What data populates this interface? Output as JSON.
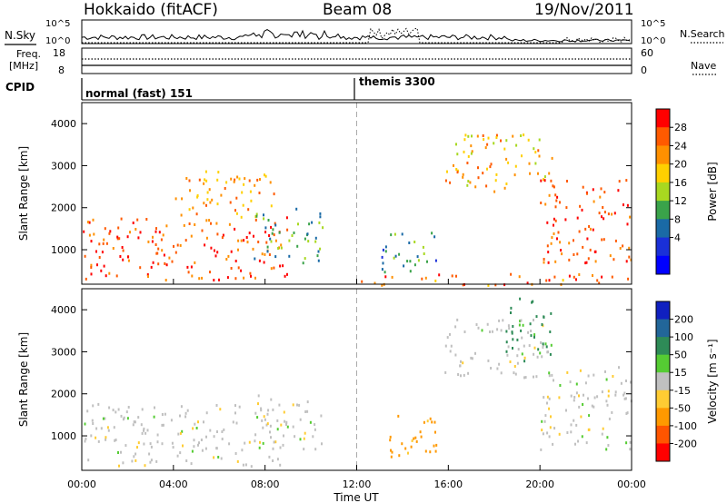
{
  "header": {
    "station": "Hokkaido (fitACF)",
    "beam": "Beam 08",
    "date": "19/Nov/2011"
  },
  "top_panels": {
    "nsky_label": "N.Sky",
    "nsky_ticks": [
      "10^5",
      "10^0"
    ],
    "nsky_right_ticks": [
      "10^5",
      "10^0"
    ],
    "nsearch_label": "N.Search",
    "freq_label": "Freq.",
    "freq_unit": "[MHz]",
    "freq_ticks": [
      "18",
      "8"
    ],
    "nave_ticks": [
      "60",
      "0"
    ],
    "nave_label": "Nave",
    "cpid_label": "CPID",
    "cpid_modes": [
      {
        "name": "normal (fast) 151",
        "start_hour": 0
      },
      {
        "name": "themis 3300",
        "start_hour": 12
      }
    ]
  },
  "chart_data": [
    {
      "type": "heatmap",
      "name": "power",
      "ylabel": "Slant Range [km]",
      "xlabel": "",
      "ylim": [
        180,
        4500
      ],
      "y_ticks": [
        1000,
        2000,
        3000,
        4000
      ],
      "colorbar": {
        "label": "Power [dB]",
        "ticks": [
          "28",
          "24",
          "20",
          "16",
          "12",
          "8",
          "4"
        ],
        "colors": [
          "#ff0000",
          "#ff5a00",
          "#ff9000",
          "#ffd000",
          "#a8d820",
          "#3aa34a",
          "#1a6aa6",
          "#1a30d8",
          "#0000ff"
        ]
      },
      "regions": [
        {
          "x": [
            0,
            9
          ],
          "y": [
            300,
            1800
          ],
          "level": 28
        },
        {
          "x": [
            4,
            8.5
          ],
          "y": [
            1600,
            2900
          ],
          "level": 24
        },
        {
          "x": [
            7.5,
            10.5
          ],
          "y": [
            700,
            2000
          ],
          "level": 12
        },
        {
          "x": [
            13,
            15.5
          ],
          "y": [
            500,
            1500
          ],
          "level": 10
        },
        {
          "x": [
            15.8,
            20.5
          ],
          "y": [
            2400,
            3800
          ],
          "level": 22
        },
        {
          "x": [
            20,
            24
          ],
          "y": [
            700,
            2700
          ],
          "level": 28
        },
        {
          "x": [
            12,
            24
          ],
          "y": [
            180,
            450
          ],
          "level": 26
        }
      ]
    },
    {
      "type": "heatmap",
      "name": "velocity",
      "ylabel": "Slant Range [km]",
      "xlabel": "Time UT",
      "ylim": [
        180,
        4500
      ],
      "y_ticks": [
        1000,
        2000,
        3000,
        4000
      ],
      "x_ticks": [
        "00:00",
        "04:00",
        "08:00",
        "12:00",
        "16:00",
        "20:00",
        "00:00"
      ],
      "colorbar": {
        "label": "Velocity [m s⁻¹]",
        "ticks": [
          "200",
          "100",
          "50",
          "15",
          "-15",
          "-50",
          "-100",
          "-200"
        ],
        "colors": [
          "#1020c0",
          "#226699",
          "#2e8b57",
          "#55cc33",
          "#c0c0c0",
          "#ffcc33",
          "#ff9900",
          "#ff5500",
          "#ff0000"
        ]
      },
      "regions": [
        {
          "x": [
            0,
            9
          ],
          "y": [
            300,
            1800
          ],
          "velocity": 0
        },
        {
          "x": [
            7.5,
            10.5
          ],
          "y": [
            700,
            2000
          ],
          "velocity": 0
        },
        {
          "x": [
            13,
            15.5
          ],
          "y": [
            500,
            1500
          ],
          "velocity": -60
        },
        {
          "x": [
            15.8,
            20.5
          ],
          "y": [
            2400,
            3800
          ],
          "velocity": 0
        },
        {
          "x": [
            18.5,
            20.5
          ],
          "y": [
            2800,
            4300
          ],
          "velocity": 60
        },
        {
          "x": [
            20,
            24
          ],
          "y": [
            700,
            2700
          ],
          "velocity": 0
        }
      ]
    }
  ]
}
